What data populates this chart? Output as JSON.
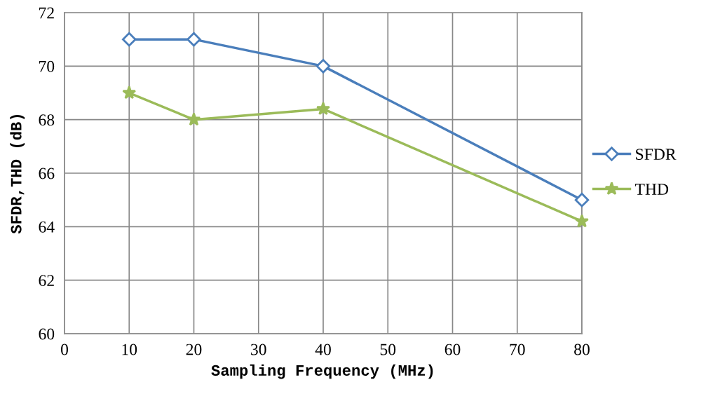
{
  "chart_data": {
    "type": "line",
    "xlabel": "Sampling Frequency (MHz)",
    "ylabel": "SFDR,THD (dB)",
    "x": [
      10,
      20,
      40,
      80
    ],
    "series": [
      {
        "name": "SFDR",
        "color": "#4a7ebb",
        "values": [
          71,
          71,
          70,
          65
        ],
        "marker": "diamond"
      },
      {
        "name": "THD",
        "color": "#9bbb59",
        "values": [
          69,
          68,
          68.4,
          64.2
        ],
        "marker": "star"
      }
    ],
    "xlim": [
      0,
      80
    ],
    "xticks": [
      0,
      10,
      20,
      30,
      40,
      50,
      60,
      70,
      80
    ],
    "ylim": [
      60,
      72
    ],
    "yticks": [
      60,
      62,
      64,
      66,
      68,
      70,
      72
    ],
    "grid": true,
    "legend": "right",
    "line_style": "solid"
  }
}
